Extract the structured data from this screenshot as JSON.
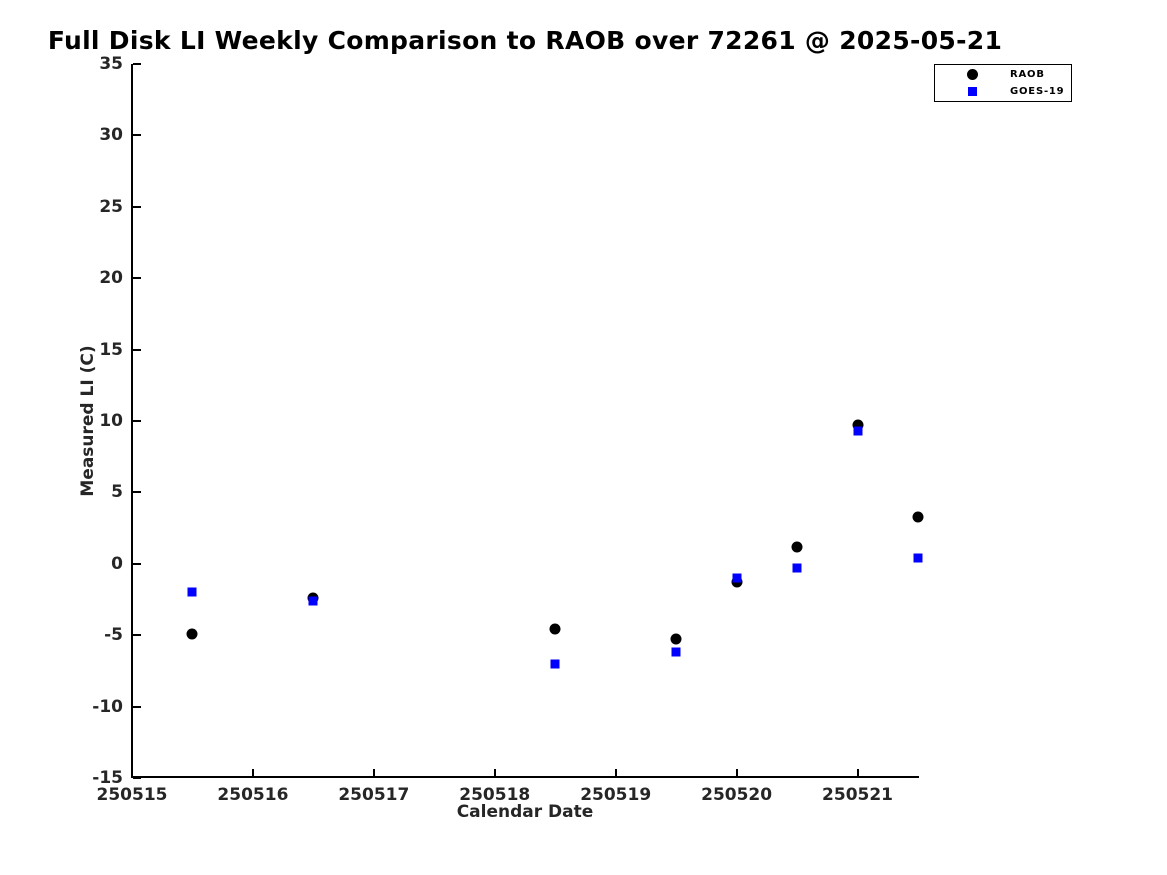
{
  "chart_data": {
    "type": "scatter",
    "title": "Full Disk LI Weekly Comparison to RAOB over 72261 @ 2025-05-21",
    "xlabel": "Calendar Date",
    "ylabel": "Measured LI (C)",
    "xlim": [
      250515,
      250521.5
    ],
    "ylim": [
      -15,
      35
    ],
    "xticks": [
      250515,
      250516,
      250517,
      250518,
      250519,
      250520,
      250521
    ],
    "yticks": [
      35,
      30,
      25,
      20,
      15,
      10,
      5,
      0,
      -5,
      -10,
      -15
    ],
    "grid": false,
    "legend_position": "top-right",
    "series": [
      {
        "name": "RAOB",
        "marker": "circle",
        "color": "#000000",
        "points": [
          [
            250515.5,
            -4.9
          ],
          [
            250516.5,
            -2.4
          ],
          [
            250518.5,
            -4.6
          ],
          [
            250519.5,
            -5.3
          ],
          [
            250520.0,
            -1.3
          ],
          [
            250520.5,
            1.2
          ],
          [
            250521.0,
            9.7
          ],
          [
            250521.5,
            3.3
          ]
        ]
      },
      {
        "name": "GOES-19",
        "marker": "square",
        "color": "#0000ff",
        "points": [
          [
            250515.5,
            -2.0
          ],
          [
            250516.5,
            -2.6
          ],
          [
            250518.5,
            -7.0
          ],
          [
            250519.5,
            -6.2
          ],
          [
            250520.0,
            -1.0
          ],
          [
            250520.5,
            -0.3
          ],
          [
            250521.0,
            9.3
          ],
          [
            250521.5,
            0.4
          ]
        ]
      }
    ]
  }
}
